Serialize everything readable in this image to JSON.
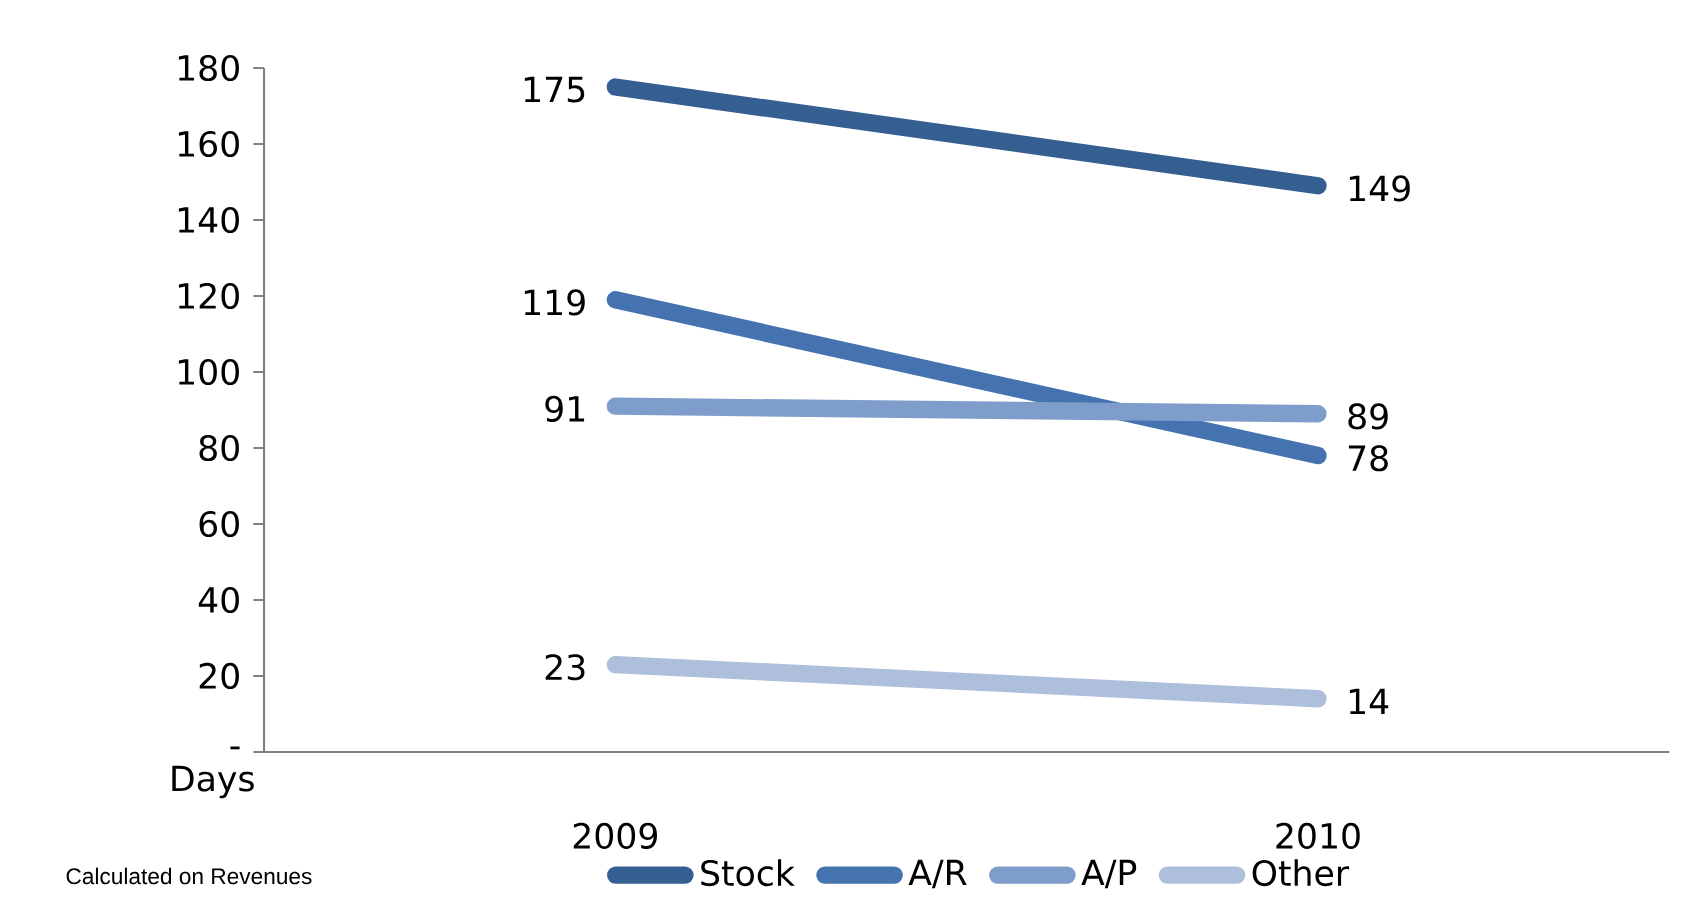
{
  "chart_data": {
    "type": "line",
    "ylabel": "Days",
    "categories": [
      "2009",
      "2010"
    ],
    "series": [
      {
        "name": "Stock",
        "color": "#355f91",
        "values": [
          175,
          149
        ]
      },
      {
        "name": "A/R",
        "color": "#4473b0",
        "values": [
          119,
          78
        ]
      },
      {
        "name": "A/P",
        "color": "#7f9dcb",
        "values": [
          91,
          89
        ]
      },
      {
        "name": "Other",
        "color": "#aebfdc",
        "values": [
          23,
          14
        ]
      }
    ],
    "ylim": [
      0,
      180
    ],
    "yticks": [
      {
        "value": 0,
        "label": "-"
      },
      20,
      40,
      60,
      80,
      100,
      120,
      140,
      160,
      180
    ],
    "data_labels": true,
    "legend": "bottom",
    "marker": "none",
    "line_style": "solid",
    "grid": false,
    "annotations": [
      "Calculated on Revenues"
    ]
  }
}
